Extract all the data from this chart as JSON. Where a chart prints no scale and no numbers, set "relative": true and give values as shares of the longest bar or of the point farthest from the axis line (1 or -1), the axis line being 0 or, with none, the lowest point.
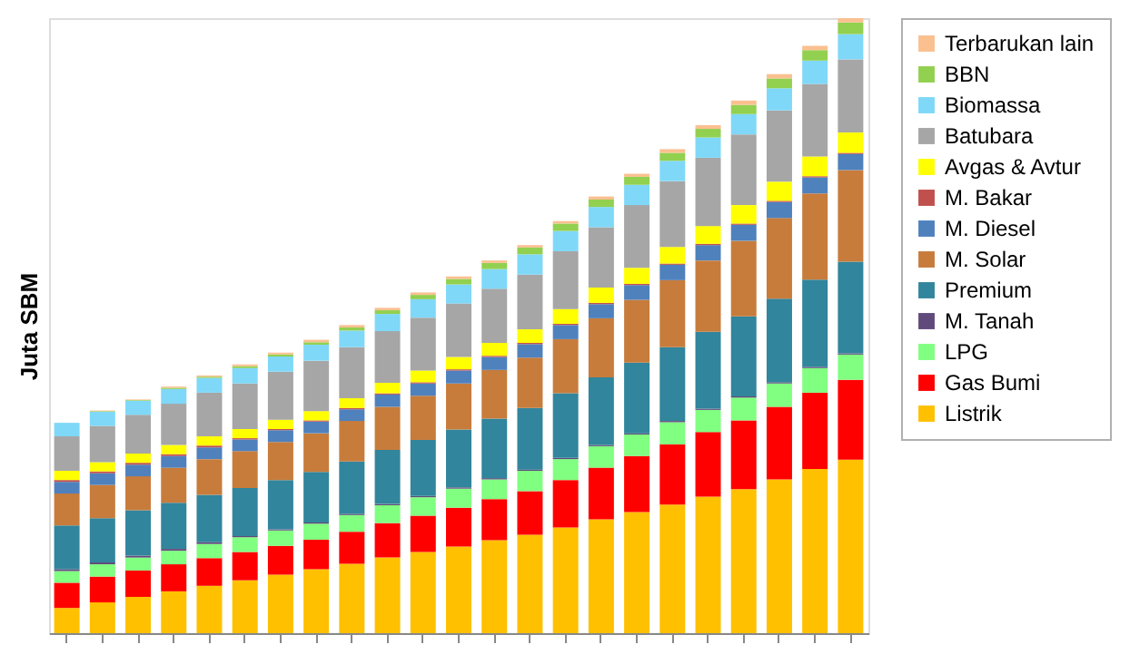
{
  "chart_data": {
    "type": "bar",
    "stacked": true,
    "relative": true,
    "ylabel": "Juta SBM",
    "legend": "right",
    "categories": [
      null,
      null,
      null,
      null,
      null,
      null,
      null,
      null,
      null,
      null,
      null,
      null,
      null,
      null,
      null,
      null,
      null,
      null,
      null,
      null,
      null,
      null,
      null
    ],
    "series": [
      {
        "name": "Listrik",
        "color": "#ffc000",
        "values": [
          0.041,
          0.05,
          0.059,
          0.068,
          0.077,
          0.086,
          0.095,
          0.104,
          0.113,
          0.123,
          0.132,
          0.141,
          0.151,
          0.16,
          0.172,
          0.185,
          0.197,
          0.209,
          0.222,
          0.234,
          0.25,
          0.267,
          0.282
        ]
      },
      {
        "name": "Gas Bumi",
        "color": "#ff0000",
        "values": [
          0.041,
          0.042,
          0.043,
          0.044,
          0.045,
          0.046,
          0.047,
          0.048,
          0.052,
          0.056,
          0.059,
          0.063,
          0.067,
          0.071,
          0.077,
          0.084,
          0.091,
          0.098,
          0.105,
          0.112,
          0.118,
          0.124,
          0.13
        ]
      },
      {
        "name": "LPG",
        "color": "#80ff80",
        "values": [
          0.019,
          0.02,
          0.021,
          0.022,
          0.023,
          0.024,
          0.025,
          0.026,
          0.027,
          0.029,
          0.03,
          0.031,
          0.032,
          0.033,
          0.034,
          0.035,
          0.035,
          0.036,
          0.036,
          0.037,
          0.038,
          0.04,
          0.041
        ]
      },
      {
        "name": "M. Tanah",
        "color": "#604a7b",
        "values": [
          0.003,
          0.003,
          0.003,
          0.003,
          0.003,
          0.002,
          0.002,
          0.002,
          0.002,
          0.002,
          0.002,
          0.002,
          0.002,
          0.002,
          0.002,
          0.002,
          0.002,
          0.002,
          0.002,
          0.002,
          0.002,
          0.002,
          0.002
        ]
      },
      {
        "name": "Premium",
        "color": "#31859c",
        "values": [
          0.071,
          0.072,
          0.074,
          0.075,
          0.077,
          0.078,
          0.08,
          0.082,
          0.085,
          0.088,
          0.091,
          0.094,
          0.097,
          0.1,
          0.105,
          0.11,
          0.115,
          0.12,
          0.125,
          0.13,
          0.136,
          0.142,
          0.149
        ]
      },
      {
        "name": "M. Solar",
        "color": "#c77c3c",
        "values": [
          0.052,
          0.054,
          0.055,
          0.057,
          0.058,
          0.06,
          0.062,
          0.063,
          0.066,
          0.07,
          0.072,
          0.075,
          0.079,
          0.082,
          0.088,
          0.096,
          0.102,
          0.109,
          0.116,
          0.123,
          0.131,
          0.14,
          0.149
        ]
      },
      {
        "name": "M. Diesel",
        "color": "#4f81bd",
        "values": [
          0.019,
          0.019,
          0.019,
          0.019,
          0.019,
          0.019,
          0.019,
          0.019,
          0.019,
          0.02,
          0.02,
          0.021,
          0.021,
          0.022,
          0.023,
          0.023,
          0.024,
          0.025,
          0.025,
          0.026,
          0.026,
          0.026,
          0.026
        ]
      },
      {
        "name": "M. Bakar",
        "color": "#c0504d",
        "values": [
          0.003,
          0.003,
          0.003,
          0.003,
          0.003,
          0.002,
          0.002,
          0.002,
          0.002,
          0.002,
          0.002,
          0.002,
          0.002,
          0.002,
          0.002,
          0.002,
          0.002,
          0.002,
          0.002,
          0.002,
          0.002,
          0.002,
          0.002
        ]
      },
      {
        "name": "Avgas & Avtur",
        "color": "#ffff00",
        "values": [
          0.015,
          0.015,
          0.015,
          0.015,
          0.015,
          0.015,
          0.015,
          0.015,
          0.016,
          0.017,
          0.019,
          0.02,
          0.021,
          0.022,
          0.024,
          0.025,
          0.026,
          0.027,
          0.029,
          0.03,
          0.031,
          0.032,
          0.033
        ]
      },
      {
        "name": "Batubara",
        "color": "#a6a6a6",
        "values": [
          0.056,
          0.059,
          0.063,
          0.067,
          0.071,
          0.074,
          0.078,
          0.082,
          0.083,
          0.084,
          0.086,
          0.087,
          0.088,
          0.089,
          0.094,
          0.098,
          0.102,
          0.107,
          0.111,
          0.115,
          0.116,
          0.118,
          0.119
        ]
      },
      {
        "name": "Biomassa",
        "color": "#7fd8f8",
        "values": [
          0.022,
          0.023,
          0.023,
          0.024,
          0.024,
          0.025,
          0.025,
          0.026,
          0.027,
          0.028,
          0.03,
          0.031,
          0.032,
          0.033,
          0.033,
          0.033,
          0.033,
          0.033,
          0.033,
          0.033,
          0.036,
          0.038,
          0.041
        ]
      },
      {
        "name": "BBN",
        "color": "#92d050",
        "values": [
          0,
          0.001,
          0.001,
          0.002,
          0.002,
          0.003,
          0.003,
          0.004,
          0.005,
          0.006,
          0.007,
          0.009,
          0.01,
          0.011,
          0.012,
          0.012,
          0.013,
          0.013,
          0.014,
          0.015,
          0.016,
          0.017,
          0.019
        ]
      },
      {
        "name": "Terbarukan lain",
        "color": "#fac090",
        "values": [
          0,
          0.001,
          0.001,
          0.002,
          0.002,
          0.003,
          0.003,
          0.004,
          0.004,
          0.004,
          0.004,
          0.004,
          0.004,
          0.004,
          0.004,
          0.005,
          0.005,
          0.006,
          0.006,
          0.007,
          0.007,
          0.007,
          0.007
        ]
      }
    ]
  }
}
